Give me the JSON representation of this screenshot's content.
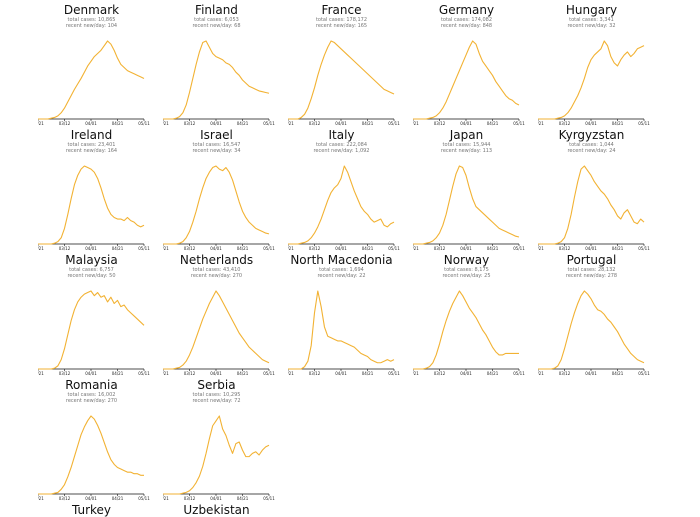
{
  "chart_data": {
    "type": "line",
    "line_color": "#f2b233",
    "x_tick_labels": [
      "02/21",
      "03/12",
      "04/01",
      "04/21",
      "05/11"
    ],
    "panels": [
      {
        "title": "Denmark",
        "total_cases": "total cases: 10,865",
        "recent_newday": "recent new/day: 104",
        "show_axis": true,
        "show_title": true,
        "values": [
          0,
          0,
          0,
          0,
          1,
          2,
          4,
          8,
          14,
          22,
          30,
          38,
          45,
          52,
          60,
          68,
          74,
          80,
          84,
          88,
          94,
          100,
          96,
          88,
          78,
          70,
          66,
          62,
          60,
          58,
          56,
          54,
          52
        ]
      },
      {
        "title": "Finland",
        "total_cases": "total cases: 6,053",
        "recent_newday": "recent new/day: 68",
        "show_axis": true,
        "show_title": true,
        "values": [
          0,
          0,
          0,
          0,
          1,
          3,
          8,
          18,
          34,
          52,
          70,
          86,
          98,
          100,
          92,
          84,
          80,
          78,
          76,
          72,
          70,
          66,
          60,
          56,
          50,
          46,
          42,
          40,
          38,
          36,
          35,
          34,
          33
        ]
      },
      {
        "title": "France",
        "total_cases": "total cases: 178,172",
        "recent_newday": "recent new/day: 165",
        "show_axis": true,
        "show_title": true,
        "values": [
          0,
          0,
          0,
          0,
          2,
          6,
          14,
          26,
          40,
          56,
          70,
          82,
          92,
          100,
          98,
          94,
          90,
          86,
          82,
          78,
          74,
          70,
          66,
          62,
          58,
          54,
          50,
          46,
          42,
          38,
          36,
          34,
          32
        ]
      },
      {
        "title": "Germany",
        "total_cases": "total cases: 174,082",
        "recent_newday": "recent new/day: 848",
        "show_axis": true,
        "show_title": true,
        "values": [
          0,
          0,
          0,
          0,
          0,
          1,
          2,
          4,
          8,
          14,
          22,
          32,
          42,
          52,
          62,
          72,
          82,
          92,
          100,
          96,
          84,
          74,
          68,
          62,
          56,
          48,
          42,
          36,
          30,
          26,
          24,
          20,
          18
        ]
      },
      {
        "title": "Hungary",
        "total_cases": "total cases: 3,341",
        "recent_newday": "recent new/day: 32",
        "show_axis": true,
        "show_title": true,
        "values": [
          0,
          0,
          0,
          0,
          0,
          0,
          1,
          2,
          4,
          8,
          14,
          22,
          30,
          40,
          52,
          66,
          76,
          82,
          86,
          90,
          100,
          94,
          80,
          72,
          68,
          76,
          82,
          86,
          80,
          84,
          90,
          92,
          94
        ]
      },
      {
        "title": "Ireland",
        "total_cases": "total cases: 23,401",
        "recent_newday": "recent new/day: 164",
        "show_axis": true,
        "show_title": true,
        "values": [
          0,
          0,
          0,
          0,
          0,
          1,
          3,
          8,
          20,
          38,
          58,
          76,
          88,
          96,
          100,
          98,
          96,
          92,
          84,
          72,
          58,
          46,
          38,
          34,
          32,
          32,
          30,
          34,
          30,
          28,
          24,
          22,
          24
        ]
      },
      {
        "title": "Israel",
        "total_cases": "total cases: 16,547",
        "recent_newday": "recent new/day: 34",
        "show_axis": true,
        "show_title": true,
        "values": [
          0,
          0,
          0,
          0,
          0,
          1,
          3,
          8,
          16,
          28,
          42,
          58,
          72,
          84,
          92,
          98,
          100,
          96,
          94,
          98,
          92,
          82,
          68,
          54,
          42,
          34,
          28,
          24,
          20,
          18,
          16,
          14,
          13
        ]
      },
      {
        "title": "Italy",
        "total_cases": "total cases: 222,084",
        "recent_newday": "recent new/day: 1,092",
        "show_axis": true,
        "show_title": true,
        "values": [
          0,
          0,
          0,
          0,
          1,
          2,
          4,
          8,
          14,
          22,
          32,
          44,
          56,
          66,
          72,
          76,
          84,
          100,
          92,
          80,
          68,
          58,
          48,
          42,
          38,
          32,
          28,
          30,
          32,
          24,
          22,
          26,
          28
        ]
      },
      {
        "title": "Japan",
        "total_cases": "total cases: 15,944",
        "recent_newday": "recent new/day: 113",
        "show_axis": true,
        "show_title": true,
        "values": [
          0,
          0,
          0,
          0,
          1,
          2,
          4,
          8,
          14,
          24,
          38,
          56,
          74,
          90,
          100,
          98,
          88,
          72,
          58,
          48,
          44,
          40,
          36,
          32,
          28,
          24,
          20,
          18,
          16,
          14,
          12,
          10,
          9
        ]
      },
      {
        "title": "Kyrgyzstan",
        "total_cases": "total cases: 1,044",
        "recent_newday": "recent new/day: 24",
        "show_axis": true,
        "show_title": true,
        "values": [
          0,
          0,
          0,
          0,
          0,
          0,
          1,
          3,
          8,
          20,
          38,
          60,
          80,
          96,
          100,
          94,
          88,
          80,
          74,
          68,
          64,
          58,
          50,
          44,
          36,
          32,
          40,
          44,
          36,
          28,
          26,
          32,
          28
        ]
      },
      {
        "title": "Malaysia",
        "total_cases": "total cases: 6,757",
        "recent_newday": "recent new/day: 50",
        "show_axis": true,
        "show_title": true,
        "values": [
          0,
          0,
          0,
          0,
          0,
          1,
          4,
          12,
          26,
          44,
          62,
          76,
          86,
          92,
          96,
          98,
          100,
          94,
          98,
          92,
          94,
          86,
          92,
          84,
          88,
          80,
          82,
          76,
          72,
          68,
          64,
          60,
          56
        ]
      },
      {
        "title": "Netherlands",
        "total_cases": "total cases: 43,410",
        "recent_newday": "recent new/day: 270",
        "show_axis": true,
        "show_title": true,
        "values": [
          0,
          0,
          0,
          0,
          1,
          2,
          5,
          10,
          18,
          28,
          40,
          52,
          64,
          74,
          84,
          92,
          100,
          94,
          86,
          78,
          70,
          62,
          54,
          46,
          40,
          34,
          28,
          24,
          20,
          16,
          12,
          10,
          8
        ]
      },
      {
        "title": "North Macedonia",
        "total_cases": "total cases: 1,694",
        "recent_newday": "recent new/day: 22",
        "show_axis": true,
        "show_title": true,
        "values": [
          0,
          0,
          0,
          0,
          0,
          3,
          10,
          30,
          72,
          100,
          80,
          54,
          42,
          40,
          38,
          36,
          36,
          34,
          32,
          30,
          28,
          24,
          20,
          18,
          16,
          12,
          10,
          8,
          8,
          10,
          12,
          10,
          12
        ]
      },
      {
        "title": "Norway",
        "total_cases": "total cases: 8,175",
        "recent_newday": "recent new/day: 25",
        "show_axis": true,
        "show_title": true,
        "values": [
          0,
          0,
          0,
          0,
          1,
          3,
          8,
          18,
          32,
          48,
          62,
          74,
          84,
          92,
          100,
          94,
          86,
          78,
          72,
          66,
          58,
          50,
          44,
          36,
          28,
          22,
          18,
          18,
          20,
          20,
          20,
          20,
          20
        ]
      },
      {
        "title": "Portugal",
        "total_cases": "total cases: 28,132",
        "recent_newday": "recent new/day: 278",
        "show_axis": true,
        "show_title": true,
        "values": [
          0,
          0,
          0,
          0,
          0,
          1,
          4,
          12,
          26,
          42,
          58,
          72,
          84,
          94,
          100,
          96,
          90,
          82,
          76,
          74,
          70,
          64,
          60,
          54,
          48,
          40,
          32,
          26,
          20,
          16,
          12,
          10,
          8
        ]
      },
      {
        "title": "Romania",
        "total_cases": "total cases: 16,002",
        "recent_newday": "recent new/day: 270",
        "show_axis": true,
        "show_title": true,
        "values": [
          0,
          0,
          0,
          0,
          0,
          1,
          2,
          6,
          12,
          22,
          34,
          48,
          62,
          76,
          86,
          94,
          100,
          96,
          88,
          78,
          66,
          54,
          44,
          38,
          34,
          32,
          30,
          28,
          28,
          26,
          26,
          24,
          24
        ]
      },
      {
        "title": "Serbia",
        "total_cases": "total cases: 10,295",
        "recent_newday": "recent new/day: 72",
        "show_axis": true,
        "show_title": true,
        "values": [
          0,
          0,
          0,
          0,
          0,
          0,
          1,
          2,
          4,
          8,
          14,
          22,
          34,
          50,
          68,
          84,
          90,
          96,
          80,
          72,
          60,
          50,
          62,
          64,
          54,
          46,
          46,
          50,
          52,
          48,
          54,
          58,
          60
        ]
      }
    ]
  },
  "footer_titles": [
    {
      "title": "Turkey"
    },
    {
      "title": "Uzbekistan"
    }
  ]
}
